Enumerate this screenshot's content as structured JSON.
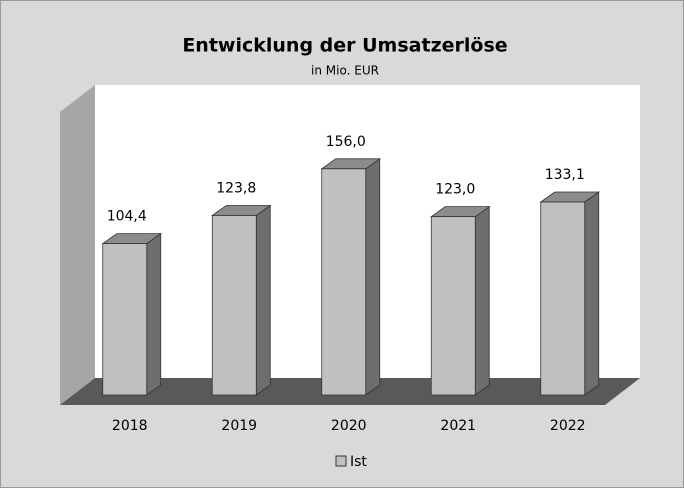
{
  "chart_data": {
    "type": "bar3d",
    "title": "Entwicklung der Umsatzerlöse",
    "subtitle": "in Mio. EUR",
    "categories": [
      "2018",
      "2019",
      "2020",
      "2021",
      "2022"
    ],
    "series": [
      {
        "name": "Ist",
        "color": "#c0c0c0",
        "values": [
          104.4,
          123.8,
          156.0,
          123.0,
          133.1
        ],
        "value_labels": [
          "104,4",
          "123,8",
          "156,0",
          "123,0",
          "133,1"
        ]
      }
    ],
    "ylim": [
      0,
      200
    ],
    "legend": "bottom"
  }
}
